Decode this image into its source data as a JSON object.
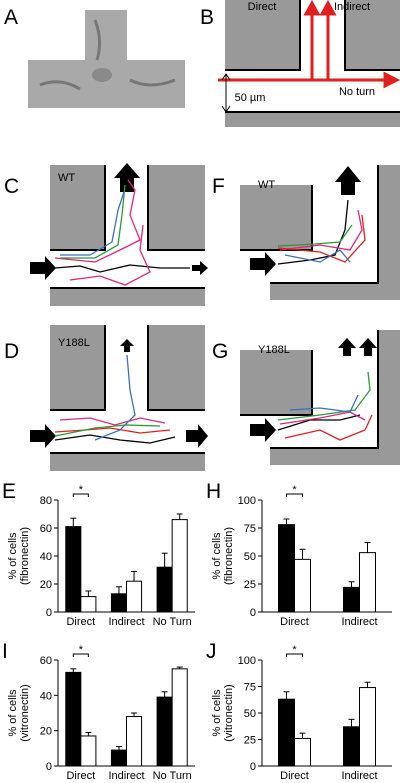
{
  "panel_labels": [
    "A",
    "B",
    "C",
    "D",
    "F",
    "G"
  ],
  "diagram_b": {
    "direct": "Direct",
    "indirect": "Indirect",
    "no_turn": "No turn",
    "scale": "50 µm"
  },
  "track_labels": {
    "c": "WT",
    "d": "Y188L",
    "f": "WT",
    "g": "Y188L"
  },
  "chart_data": [
    {
      "type": "bar",
      "panel": "E",
      "ylabel": [
        "% of cells",
        "(fibronectin)"
      ],
      "categories": [
        "Direct",
        "Indirect",
        "No Turn"
      ],
      "series": [
        {
          "color": "#000000",
          "values": [
            61,
            13,
            32
          ],
          "errors": [
            6,
            5,
            10
          ]
        },
        {
          "color": "#ffffff",
          "values": [
            11,
            22,
            66
          ],
          "errors": [
            4,
            7,
            4
          ]
        }
      ],
      "ylim": [
        0,
        80
      ],
      "yticks": [
        0,
        20,
        40,
        60,
        80
      ],
      "annotation": "*"
    },
    {
      "type": "bar",
      "panel": "H",
      "ylabel": [
        "% of cells",
        "(fibronectin)"
      ],
      "categories": [
        "Direct",
        "Indirect"
      ],
      "series": [
        {
          "color": "#000000",
          "values": [
            78,
            22
          ],
          "errors": [
            5,
            5
          ]
        },
        {
          "color": "#ffffff",
          "values": [
            47,
            53
          ],
          "errors": [
            9,
            9
          ]
        }
      ],
      "ylim": [
        0,
        100
      ],
      "yticks": [
        0,
        25,
        50,
        75,
        100
      ],
      "annotation": "*"
    },
    {
      "type": "bar",
      "panel": "I",
      "ylabel": [
        "% of cells",
        "(vitronectin)"
      ],
      "categories": [
        "Direct",
        "Indirect",
        "No Turn"
      ],
      "series": [
        {
          "color": "#000000",
          "values": [
            53,
            9,
            39
          ],
          "errors": [
            2,
            2,
            3
          ]
        },
        {
          "color": "#ffffff",
          "values": [
            17,
            28,
            55
          ],
          "errors": [
            2,
            2,
            1
          ]
        }
      ],
      "ylim": [
        0,
        60
      ],
      "yticks": [
        0,
        20,
        40,
        60
      ],
      "annotation": "*"
    },
    {
      "type": "bar",
      "panel": "J",
      "ylabel": [
        "% of cells",
        "(vitronectin)"
      ],
      "categories": [
        "Direct",
        "Indirect"
      ],
      "series": [
        {
          "color": "#000000",
          "values": [
            63,
            37
          ],
          "errors": [
            7,
            7
          ]
        },
        {
          "color": "#ffffff",
          "values": [
            26,
            74
          ],
          "errors": [
            5,
            5
          ]
        }
      ],
      "ylim": [
        0,
        100
      ],
      "yticks": [
        0,
        25,
        50,
        75,
        100
      ],
      "annotation": "*"
    }
  ]
}
